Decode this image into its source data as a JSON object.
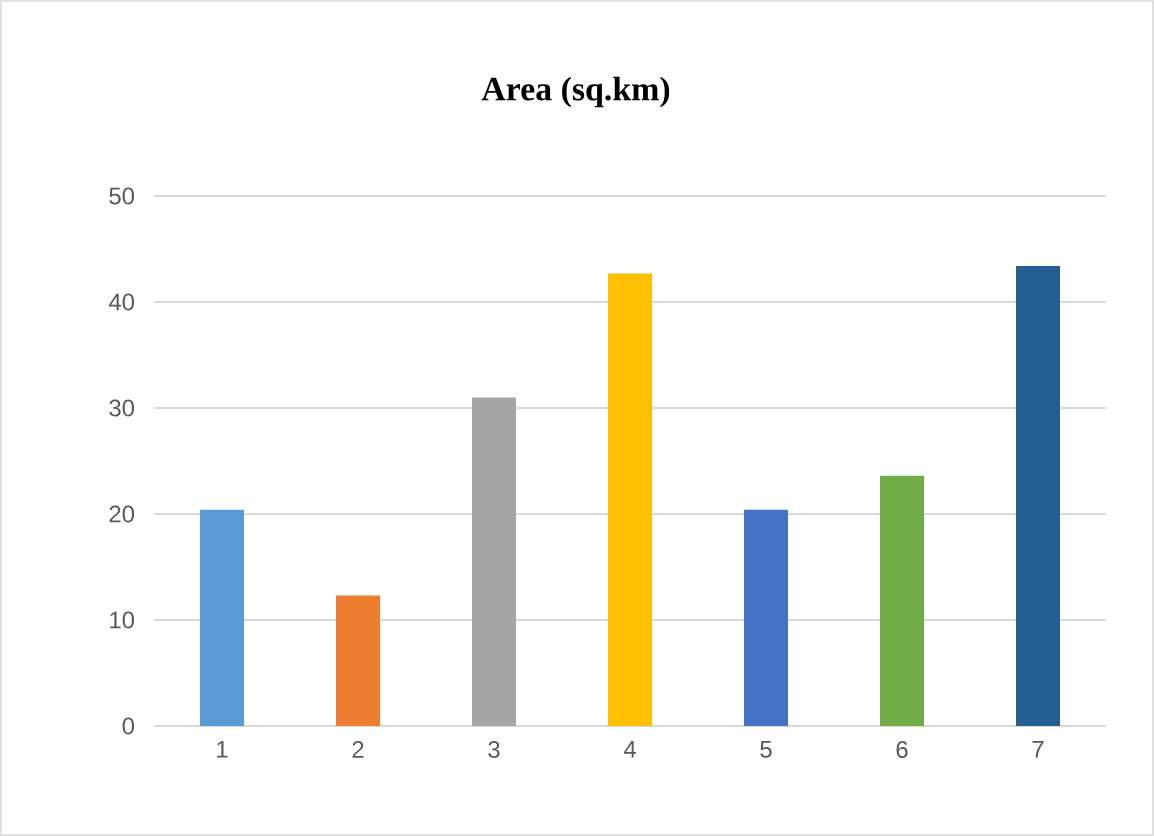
{
  "chart_data": {
    "type": "bar",
    "title": "Area (sq.km)",
    "categories": [
      "1",
      "2",
      "3",
      "4",
      "5",
      "6",
      "7"
    ],
    "values": [
      20.4,
      12.3,
      31.0,
      42.7,
      20.4,
      23.6,
      43.4
    ],
    "colors": [
      "#5b9bd5",
      "#ed7d31",
      "#a5a5a5",
      "#ffc000",
      "#4472c4",
      "#70ad47",
      "#255e91"
    ],
    "ylim": [
      0,
      50
    ],
    "yticks": [
      0,
      10,
      20,
      30,
      40,
      50
    ],
    "grid": "y"
  }
}
